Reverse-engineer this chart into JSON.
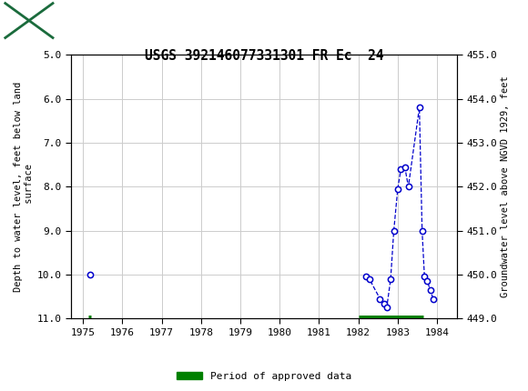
{
  "title": "USGS 392146077331301 FR Ec  24",
  "ylabel_left": "Depth to water level, feet below land\n surface",
  "ylabel_right": "Groundwater level above NGVD 1929, feet",
  "xlim": [
    1974.7,
    1984.5
  ],
  "ylim_left_top": 5.0,
  "ylim_left_bottom": 11.0,
  "ylim_right_top": 455.0,
  "ylim_right_bottom": 449.0,
  "xticks": [
    1975,
    1976,
    1977,
    1978,
    1979,
    1980,
    1981,
    1982,
    1983,
    1984
  ],
  "yticks_left": [
    5.0,
    6.0,
    7.0,
    8.0,
    9.0,
    10.0,
    11.0
  ],
  "yticks_right": [
    455.0,
    454.0,
    453.0,
    452.0,
    451.0,
    450.0,
    449.0
  ],
  "segments": [
    {
      "x": [
        1975.17
      ],
      "y": [
        10.0
      ]
    },
    {
      "x": [
        1982.2,
        1982.28,
        1982.55,
        1982.65,
        1982.72,
        1982.82,
        1982.9,
        1983.0,
        1983.08,
        1983.18,
        1983.27,
        1983.55,
        1983.62,
        1983.68,
        1983.75,
        1983.83,
        1983.9
      ],
      "y": [
        10.05,
        10.1,
        10.55,
        10.65,
        10.75,
        10.1,
        9.0,
        8.05,
        7.6,
        7.55,
        8.0,
        6.2,
        9.0,
        10.05,
        10.15,
        10.35,
        10.55
      ]
    }
  ],
  "data_color": "#0000cc",
  "approved_periods": [
    [
      1982.0,
      1983.65
    ]
  ],
  "approved_color": "#008000",
  "legend_label": "Period of approved data",
  "header_color": "#1a6b3c",
  "approved_y": 11.0,
  "small_approved_x": 1975.17,
  "small_approved_y": 11.0
}
